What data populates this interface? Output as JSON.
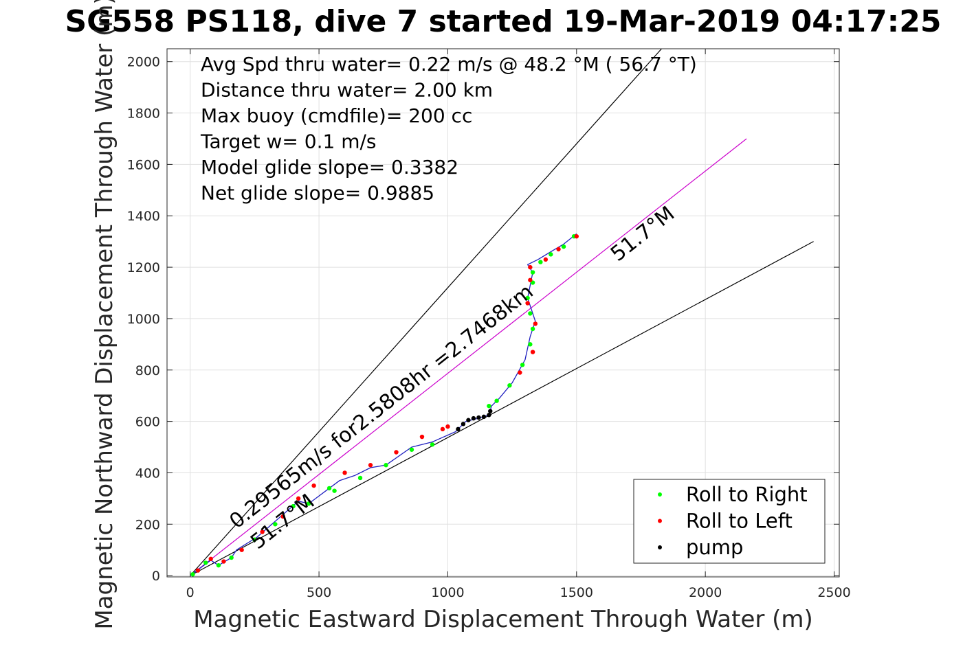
{
  "chart_data": {
    "type": "line",
    "title": "SG558 PS118, dive 7 started 19-Mar-2019 04:17:25",
    "xlabel": "Magnetic Eastward Displacement Through Water (m)",
    "ylabel": "Magnetic Northward Displacement Through Water (m)",
    "xlim": [
      -90,
      2520
    ],
    "ylim": [
      -5,
      2050
    ],
    "xticks": [
      "0",
      "500",
      "1000",
      "1500",
      "2000",
      "2500"
    ],
    "xtick_values": [
      0,
      500,
      1000,
      1500,
      2000,
      2500
    ],
    "yticks": [
      "0",
      "200",
      "400",
      "600",
      "800",
      "1000",
      "1200",
      "1400",
      "1600",
      "1800",
      "2000"
    ],
    "ytick_values": [
      0,
      200,
      400,
      600,
      800,
      1000,
      1200,
      1400,
      1600,
      1800,
      2000
    ],
    "grid": true,
    "info_lines": [
      "Avg Spd thru water=  0.22 m/s @  48.2 °M ( 56.7 °T)",
      "Distance thru water=  2.00 km",
      "Max buoy (cmdfile)= 200 cc",
      "Target w= 0.1 m/s",
      "Model glide slope= 0.3382",
      "Net glide slope= 0.9885"
    ],
    "reference_lines": [
      {
        "x": [
          0,
          1830
        ],
        "y": [
          0,
          2050
        ],
        "color": "#000000"
      },
      {
        "x": [
          0,
          2160
        ],
        "y": [
          0,
          1700
        ],
        "color": "#cc00cc"
      },
      {
        "x": [
          0,
          2420
        ],
        "y": [
          0,
          1300
        ],
        "color": "#000000"
      }
    ],
    "annotations": [
      {
        "text": "0.29565m/s for2.5808hr =2.7468km",
        "x": 180,
        "y": 180,
        "angle": 38.3
      },
      {
        "text": "51.7°M",
        "x": 1660,
        "y": 1220,
        "angle": 38.3
      },
      {
        "text": "51.7°M",
        "x": 262,
        "y": 100,
        "angle": 38.3
      }
    ],
    "track": {
      "x": [
        0,
        80,
        110,
        160,
        180,
        260,
        420,
        460,
        580,
        640,
        700,
        760,
        860,
        940,
        1030,
        1070,
        1110,
        1160,
        1170,
        1200,
        1250,
        1300,
        1320,
        1340,
        1310,
        1330,
        1310,
        1350,
        1400,
        1450,
        1500
      ],
      "y": [
        0,
        60,
        40,
        70,
        100,
        150,
        290,
        280,
        370,
        390,
        420,
        430,
        500,
        520,
        560,
        600,
        610,
        625,
        660,
        690,
        750,
        840,
        930,
        990,
        1080,
        1180,
        1210,
        1230,
        1260,
        1290,
        1330
      ]
    },
    "series": [
      {
        "name": "Roll to Right",
        "color": "#00ff00",
        "x": [
          10,
          60,
          110,
          160,
          250,
          330,
          400,
          460,
          540,
          560,
          660,
          760,
          860,
          940,
          1160,
          1190,
          1240,
          1290,
          1320,
          1330,
          1320,
          1310,
          1330,
          1330,
          1360,
          1400,
          1450,
          1490
        ],
        "y": [
          5,
          50,
          40,
          70,
          140,
          200,
          270,
          280,
          340,
          330,
          380,
          430,
          490,
          510,
          660,
          680,
          740,
          820,
          900,
          960,
          1020,
          1080,
          1140,
          1180,
          1220,
          1250,
          1280,
          1320
        ]
      },
      {
        "name": "Roll to Left",
        "color": "#ff0000",
        "x": [
          30,
          80,
          130,
          200,
          280,
          360,
          420,
          480,
          600,
          700,
          800,
          900,
          980,
          1000,
          1280,
          1330,
          1340,
          1310,
          1320,
          1320,
          1380,
          1430,
          1500
        ],
        "y": [
          20,
          65,
          55,
          100,
          170,
          230,
          300,
          350,
          400,
          430,
          480,
          540,
          570,
          580,
          790,
          870,
          980,
          1060,
          1150,
          1200,
          1230,
          1270,
          1320
        ]
      },
      {
        "name": "pump",
        "color": "#000000",
        "x": [
          1040,
          1060,
          1080,
          1100,
          1120,
          1140,
          1160,
          1165
        ],
        "y": [
          570,
          590,
          605,
          612,
          615,
          618,
          625,
          640
        ]
      }
    ],
    "legend_position": "bottom-right"
  }
}
